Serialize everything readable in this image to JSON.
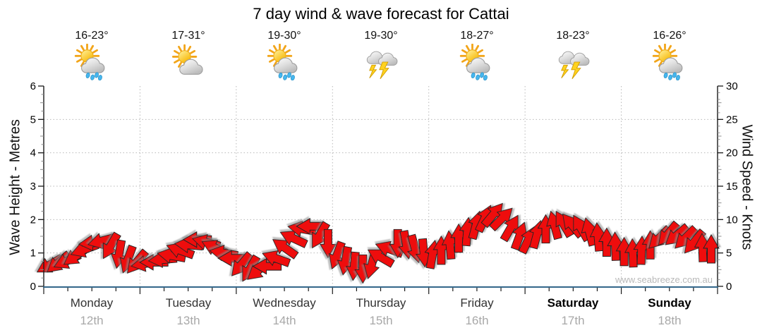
{
  "title": "7 day wind & wave forecast for Cattai",
  "watermark": "www.seabreeze.com.au",
  "days": [
    {
      "name": "Monday",
      "date": "12th",
      "temp": "16-23°",
      "icon": "showers",
      "weekend": false
    },
    {
      "name": "Tuesday",
      "date": "13th",
      "temp": "17-31°",
      "icon": "partly-cloudy",
      "weekend": false
    },
    {
      "name": "Wednesday",
      "date": "14th",
      "temp": "19-30°",
      "icon": "showers",
      "weekend": false
    },
    {
      "name": "Thursday",
      "date": "15th",
      "temp": "19-30°",
      "icon": "storm",
      "weekend": false
    },
    {
      "name": "Friday",
      "date": "16th",
      "temp": "18-27°",
      "icon": "showers",
      "weekend": false
    },
    {
      "name": "Saturday",
      "date": "17th",
      "temp": "18-23°",
      "icon": "storm",
      "weekend": true
    },
    {
      "name": "Sunday",
      "date": "18th",
      "temp": "16-26°",
      "icon": "showers",
      "weekend": true
    }
  ],
  "chart_data": {
    "type": "wind-arrow-series",
    "title": "7 day wind & wave forecast for Cattai",
    "left_axis": {
      "label": "Wave Height - Metres",
      "min": 0,
      "max": 6,
      "ticks": [
        "0",
        "1",
        "2",
        "3",
        "4",
        "5",
        "6"
      ]
    },
    "right_axis": {
      "label": "Wind Speed - Knots",
      "min": 0,
      "max": 30,
      "ticks": [
        "0",
        "5",
        "10",
        "15",
        "20",
        "25",
        "30"
      ]
    },
    "x_axis": {
      "categories": [
        "Monday",
        "Tuesday",
        "Wednesday",
        "Thursday",
        "Friday",
        "Saturday",
        "Sunday"
      ],
      "grid": "dotted-day-boundaries"
    },
    "series": [
      {
        "name": "Wind speed and direction",
        "unit": "knots",
        "points_per_day": 11,
        "speeds_knots": [
          3.2,
          3.5,
          3.8,
          4.5,
          5.5,
          6.5,
          6.8,
          6.0,
          4.8,
          4.0,
          3.6,
          3.4,
          3.6,
          4.0,
          4.6,
          5.4,
          6.2,
          7.0,
          6.6,
          5.8,
          5.0,
          4.2,
          3.2,
          2.6,
          2.4,
          3.0,
          4.2,
          5.8,
          7.2,
          8.6,
          9.0,
          7.6,
          6.4,
          4.6,
          3.8,
          3.0,
          2.6,
          3.2,
          4.4,
          5.6,
          6.4,
          6.2,
          5.6,
          5.0,
          4.8,
          5.4,
          6.2,
          7.2,
          8.2,
          9.2,
          10.2,
          10.8,
          10.2,
          8.8,
          7.6,
          7.0,
          7.8,
          8.6,
          9.2,
          9.4,
          9.2,
          8.8,
          8.2,
          7.4,
          6.6,
          6.0,
          5.2,
          5.0,
          5.4,
          6.2,
          7.2,
          7.8,
          7.6,
          7.2,
          6.6,
          5.8,
          5.6
        ],
        "arrow_rotation_deg_cw_from_east": [
          150,
          140,
          155,
          145,
          160,
          175,
          165,
          120,
          100,
          110,
          130,
          170,
          180,
          175,
          190,
          200,
          185,
          180,
          195,
          205,
          190,
          180,
          130,
          120,
          140,
          180,
          200,
          215,
          205,
          190,
          180,
          120,
          90,
          110,
          100,
          95,
          90,
          105,
          210,
          200,
          90,
          80,
          75,
          85,
          280,
          270,
          265,
          270,
          275,
          285,
          295,
          310,
          315,
          300,
          290,
          295,
          285,
          270,
          255,
          240,
          230,
          240,
          255,
          265,
          270,
          268,
          270,
          268,
          272,
          270,
          135,
          130,
          140,
          135,
          130,
          268,
          270
        ]
      }
    ],
    "colors": {
      "arrow_fill": "#ee1111",
      "arrow_outline": "#242424",
      "baseline_blue": "#33678a",
      "grid": "#b8b8b8",
      "minor_tick": "#8c8c8c",
      "axis": "#1a1a1a"
    },
    "legend": "none",
    "grid_on": true
  }
}
